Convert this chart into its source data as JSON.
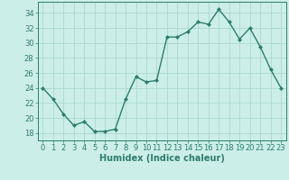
{
  "x": [
    0,
    1,
    2,
    3,
    4,
    5,
    6,
    7,
    8,
    9,
    10,
    11,
    12,
    13,
    14,
    15,
    16,
    17,
    18,
    19,
    20,
    21,
    22,
    23
  ],
  "y": [
    24,
    22.5,
    20.5,
    19,
    19.5,
    18.2,
    18.2,
    18.5,
    22.5,
    25.5,
    24.8,
    25,
    30.8,
    30.8,
    31.5,
    32.8,
    32.5,
    34.5,
    32.8,
    30.5,
    32,
    29.5,
    26.5,
    24
  ],
  "line_color": "#2d7d6e",
  "marker": "D",
  "marker_size": 2,
  "linewidth": 1.0,
  "background_color": "#cceee8",
  "grid_color": "#aad8d0",
  "xlabel": "Humidex (Indice chaleur)",
  "ylabel": "",
  "xlim": [
    -0.5,
    23.5
  ],
  "ylim": [
    17,
    35.5
  ],
  "yticks": [
    18,
    20,
    22,
    24,
    26,
    28,
    30,
    32,
    34
  ],
  "xticks": [
    0,
    1,
    2,
    3,
    4,
    5,
    6,
    7,
    8,
    9,
    10,
    11,
    12,
    13,
    14,
    15,
    16,
    17,
    18,
    19,
    20,
    21,
    22,
    23
  ],
  "tick_color": "#2d7d6e",
  "label_color": "#2d7d6e",
  "xlabel_fontsize": 7,
  "tick_fontsize": 6
}
